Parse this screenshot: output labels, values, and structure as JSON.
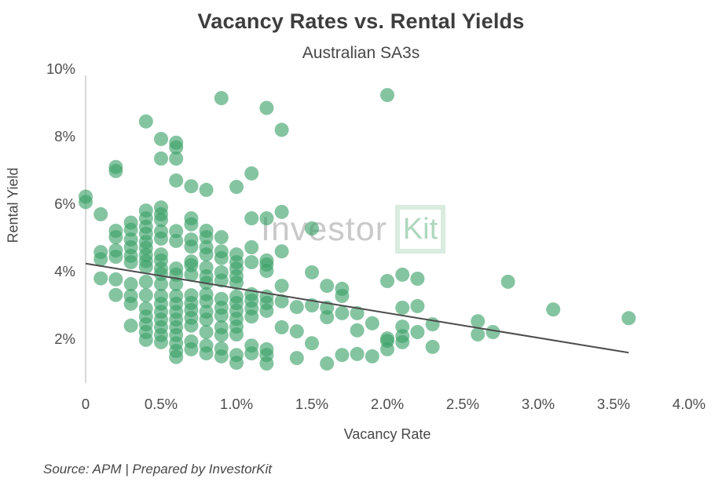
{
  "chart": {
    "title": "Vacancy Rates vs. Rental Yields",
    "subtitle": "Australian SA3s",
    "xlabel": "Vacancy Rate",
    "ylabel": "Rental Yield"
  },
  "watermark": {
    "gray": "Investor",
    "green": "Kit"
  },
  "source": "Source: APM | Prepared by InvestorKit",
  "chart_data": {
    "type": "scatter",
    "title": "Vacancy Rates vs. Rental Yields",
    "subtitle": "Australian SA3s",
    "xlabel": "Vacancy Rate",
    "ylabel": "Rental Yield",
    "xlim": [
      0,
      4.0
    ],
    "ylim": [
      1,
      10
    ],
    "grid": false,
    "legend": "none",
    "x_ticks": [
      {
        "v": 0,
        "label": "0"
      },
      {
        "v": 0.5,
        "label": "0.5%"
      },
      {
        "v": 1.0,
        "label": "1.0%"
      },
      {
        "v": 1.5,
        "label": "1.5%"
      },
      {
        "v": 2.0,
        "label": "2.0%"
      },
      {
        "v": 2.5,
        "label": "2.5%"
      },
      {
        "v": 3.0,
        "label": "3.0%"
      },
      {
        "v": 3.5,
        "label": "3.5%"
      },
      {
        "v": 4.0,
        "label": "4.0%"
      }
    ],
    "y_ticks": [
      {
        "v": 2,
        "label": "2%"
      },
      {
        "v": 4,
        "label": "4%"
      },
      {
        "v": 6,
        "label": "6%"
      },
      {
        "v": 8,
        "label": "8%"
      },
      {
        "v": 10,
        "label": "10%"
      }
    ],
    "trendline": {
      "x1": 0,
      "y1": 4.24,
      "x2": 3.6,
      "y2": 1.6
    },
    "colors": {
      "point": "#3aa068",
      "point_opacity": 0.62,
      "trend": "#4b4b4b",
      "axis_line": "#d8d8d8",
      "tick_text": "#4d4d4d",
      "title_text": "#3d3d3d",
      "body_text": "#474747",
      "watermark_gray": "#c9c9c9",
      "watermark_green": "#aed7be",
      "watermark_box": "#d9ecdf"
    },
    "points": [
      [
        0,
        6.22
      ],
      [
        0,
        6.06
      ],
      [
        0.1,
        5.7
      ],
      [
        0.1,
        4.58
      ],
      [
        0.1,
        4.37
      ],
      [
        0.1,
        3.8
      ],
      [
        0.2,
        7.1
      ],
      [
        0.2,
        6.98
      ],
      [
        0.2,
        5.21
      ],
      [
        0.2,
        5.02
      ],
      [
        0.2,
        4.63
      ],
      [
        0.2,
        4.44
      ],
      [
        0.2,
        3.77
      ],
      [
        0.2,
        3.31
      ],
      [
        0.3,
        5.45
      ],
      [
        0.3,
        5.24
      ],
      [
        0.3,
        4.95
      ],
      [
        0.3,
        4.72
      ],
      [
        0.3,
        4.47
      ],
      [
        0.3,
        4.28
      ],
      [
        0.3,
        3.63
      ],
      [
        0.3,
        3.28
      ],
      [
        0.3,
        3.05
      ],
      [
        0.3,
        2.4
      ],
      [
        0.4,
        8.45
      ],
      [
        0.4,
        5.81
      ],
      [
        0.4,
        5.58
      ],
      [
        0.4,
        5.33
      ],
      [
        0.4,
        5.12
      ],
      [
        0.4,
        4.88
      ],
      [
        0.4,
        4.7
      ],
      [
        0.4,
        4.49
      ],
      [
        0.4,
        4.31
      ],
      [
        0.4,
        4.14
      ],
      [
        0.4,
        3.7
      ],
      [
        0.4,
        3.3
      ],
      [
        0.4,
        2.91
      ],
      [
        0.4,
        2.67
      ],
      [
        0.4,
        2.44
      ],
      [
        0.4,
        2.21
      ],
      [
        0.4,
        1.98
      ],
      [
        0.5,
        7.93
      ],
      [
        0.5,
        7.35
      ],
      [
        0.5,
        5.9
      ],
      [
        0.5,
        5.7
      ],
      [
        0.5,
        5.53
      ],
      [
        0.5,
        5.19
      ],
      [
        0.5,
        4.98
      ],
      [
        0.5,
        4.51
      ],
      [
        0.5,
        4.33
      ],
      [
        0.5,
        4.09
      ],
      [
        0.5,
        3.93
      ],
      [
        0.5,
        3.63
      ],
      [
        0.5,
        3.28
      ],
      [
        0.5,
        3.05
      ],
      [
        0.5,
        2.81
      ],
      [
        0.5,
        2.58
      ],
      [
        0.5,
        2.35
      ],
      [
        0.5,
        2.12
      ],
      [
        0.5,
        1.91
      ],
      [
        0.6,
        7.82
      ],
      [
        0.6,
        7.68
      ],
      [
        0.6,
        7.35
      ],
      [
        0.6,
        6.7
      ],
      [
        0.6,
        5.2
      ],
      [
        0.6,
        4.91
      ],
      [
        0.6,
        4.09
      ],
      [
        0.6,
        3.91
      ],
      [
        0.6,
        3.63
      ],
      [
        0.6,
        3.28
      ],
      [
        0.6,
        3.05
      ],
      [
        0.6,
        2.81
      ],
      [
        0.6,
        2.58
      ],
      [
        0.6,
        2.35
      ],
      [
        0.6,
        2.12
      ],
      [
        0.6,
        1.88
      ],
      [
        0.6,
        1.65
      ],
      [
        0.6,
        1.47
      ],
      [
        0.7,
        6.53
      ],
      [
        0.7,
        5.58
      ],
      [
        0.7,
        5.4
      ],
      [
        0.7,
        4.95
      ],
      [
        0.7,
        4.74
      ],
      [
        0.7,
        4.3
      ],
      [
        0.7,
        4.19
      ],
      [
        0.7,
        3.91
      ],
      [
        0.7,
        3.3
      ],
      [
        0.7,
        3.07
      ],
      [
        0.7,
        2.86
      ],
      [
        0.7,
        2.63
      ],
      [
        0.7,
        2.4
      ],
      [
        0.7,
        1.93
      ],
      [
        0.7,
        1.7
      ],
      [
        0.8,
        6.42
      ],
      [
        0.8,
        5.21
      ],
      [
        0.8,
        5.02
      ],
      [
        0.8,
        4.72
      ],
      [
        0.8,
        4.51
      ],
      [
        0.8,
        4.12
      ],
      [
        0.8,
        3.86
      ],
      [
        0.8,
        3.67
      ],
      [
        0.8,
        3.33
      ],
      [
        0.8,
        3.12
      ],
      [
        0.8,
        2.81
      ],
      [
        0.8,
        2.58
      ],
      [
        0.8,
        2.21
      ],
      [
        0.8,
        1.81
      ],
      [
        0.8,
        1.58
      ],
      [
        0.9,
        9.14
      ],
      [
        0.9,
        5.02
      ],
      [
        0.9,
        4.6
      ],
      [
        0.9,
        4.4
      ],
      [
        0.9,
        3.98
      ],
      [
        0.9,
        3.74
      ],
      [
        0.9,
        3.19
      ],
      [
        0.9,
        2.93
      ],
      [
        0.9,
        2.7
      ],
      [
        0.9,
        2.35
      ],
      [
        0.9,
        2.12
      ],
      [
        0.9,
        1.72
      ],
      [
        0.9,
        1.49
      ],
      [
        1.0,
        6.51
      ],
      [
        1.0,
        4.51
      ],
      [
        1.0,
        4.28
      ],
      [
        1.0,
        4.09
      ],
      [
        1.0,
        3.86
      ],
      [
        1.0,
        3.67
      ],
      [
        1.0,
        3.26
      ],
      [
        1.0,
        3.07
      ],
      [
        1.0,
        2.84
      ],
      [
        1.0,
        2.6
      ],
      [
        1.0,
        2.37
      ],
      [
        1.0,
        2.14
      ],
      [
        1.0,
        1.53
      ],
      [
        1.0,
        1.3
      ],
      [
        1.1,
        6.91
      ],
      [
        1.1,
        5.58
      ],
      [
        1.1,
        4.72
      ],
      [
        1.1,
        4.28
      ],
      [
        1.1,
        3.33
      ],
      [
        1.1,
        3.14
      ],
      [
        1.1,
        2.91
      ],
      [
        1.1,
        2.67
      ],
      [
        1.1,
        1.81
      ],
      [
        1.1,
        1.58
      ],
      [
        1.2,
        8.85
      ],
      [
        1.2,
        5.58
      ],
      [
        1.2,
        4.33
      ],
      [
        1.2,
        4.21
      ],
      [
        1.2,
        4.02
      ],
      [
        1.2,
        3.26
      ],
      [
        1.2,
        3.07
      ],
      [
        1.2,
        2.84
      ],
      [
        1.2,
        1.7
      ],
      [
        1.2,
        1.53
      ],
      [
        1.2,
        1.28
      ],
      [
        1.3,
        8.2
      ],
      [
        1.3,
        5.77
      ],
      [
        1.3,
        4.6
      ],
      [
        1.3,
        3.58
      ],
      [
        1.3,
        3.12
      ],
      [
        1.3,
        2.35
      ],
      [
        1.4,
        2.95
      ],
      [
        1.4,
        2.23
      ],
      [
        1.4,
        1.44
      ],
      [
        1.5,
        5.28
      ],
      [
        1.5,
        3.98
      ],
      [
        1.5,
        3.0
      ],
      [
        1.5,
        1.88
      ],
      [
        1.6,
        3.58
      ],
      [
        1.6,
        2.93
      ],
      [
        1.6,
        2.65
      ],
      [
        1.6,
        1.28
      ],
      [
        1.7,
        3.49
      ],
      [
        1.7,
        3.28
      ],
      [
        1.7,
        2.77
      ],
      [
        1.7,
        1.53
      ],
      [
        1.8,
        2.77
      ],
      [
        1.8,
        2.26
      ],
      [
        1.8,
        1.56
      ],
      [
        1.9,
        2.47
      ],
      [
        1.9,
        1.49
      ],
      [
        2.0,
        9.23
      ],
      [
        2.0,
        3.72
      ],
      [
        2.0,
        2.02
      ],
      [
        2.0,
        1.95
      ],
      [
        2.0,
        1.7
      ],
      [
        2.1,
        3.91
      ],
      [
        2.1,
        2.93
      ],
      [
        2.1,
        2.37
      ],
      [
        2.1,
        2.09
      ],
      [
        2.1,
        1.91
      ],
      [
        2.2,
        3.79
      ],
      [
        2.2,
        2.98
      ],
      [
        2.2,
        2.21
      ],
      [
        2.3,
        2.44
      ],
      [
        2.3,
        1.77
      ],
      [
        2.6,
        2.53
      ],
      [
        2.6,
        2.14
      ],
      [
        2.7,
        2.21
      ],
      [
        2.8,
        3.7
      ],
      [
        3.1,
        2.88
      ],
      [
        3.6,
        2.62
      ]
    ]
  }
}
